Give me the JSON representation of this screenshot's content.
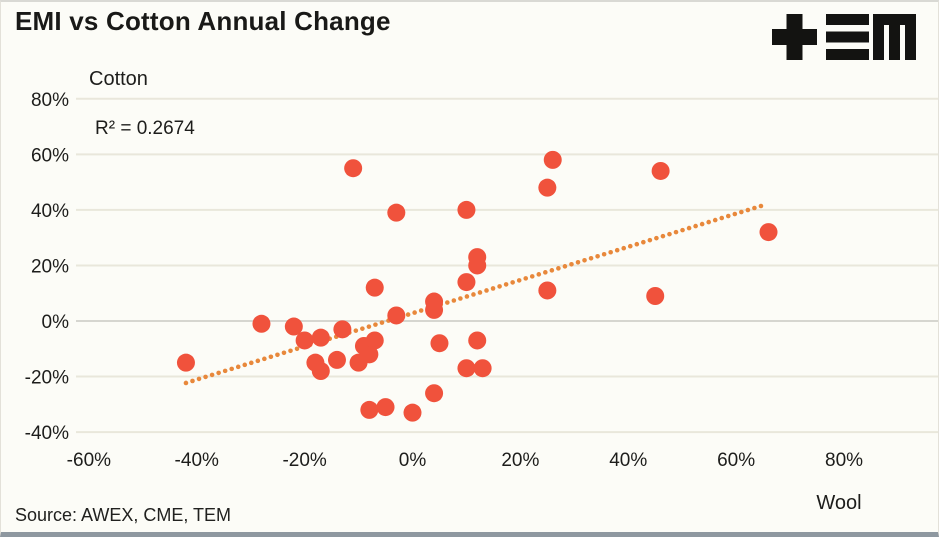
{
  "header": {
    "title": "EMI vs Cotton Annual Change",
    "logo": "tem-logo"
  },
  "footer": {
    "source": "Source: AWEX, CME, TEM"
  },
  "chart_data": {
    "type": "scatter",
    "title": "EMI vs Cotton Annual Change",
    "xlabel": "Wool",
    "ylabel": "Cotton",
    "annotation_r2": "R² = 0.2674",
    "r_squared": 0.2674,
    "xlim": [
      -60,
      80
    ],
    "ylim": [
      -40,
      80
    ],
    "grid": true,
    "x_ticks": [
      "-60%",
      "-40%",
      "-20%",
      "0%",
      "20%",
      "40%",
      "60%",
      "80%"
    ],
    "x_tick_values": [
      -60,
      -40,
      -20,
      0,
      20,
      40,
      60,
      80
    ],
    "y_ticks": [
      "80%",
      "60%",
      "40%",
      "20%",
      "0%",
      "-20%",
      "-40%"
    ],
    "y_tick_values": [
      80,
      60,
      40,
      20,
      0,
      -20,
      -40
    ],
    "points_wool_cotton_pct": [
      [
        -42,
        -15
      ],
      [
        -28,
        -1
      ],
      [
        -22,
        -2
      ],
      [
        -20,
        -7
      ],
      [
        -18,
        -15
      ],
      [
        -17,
        -6
      ],
      [
        -17,
        -18
      ],
      [
        -14,
        -14
      ],
      [
        -13,
        -3
      ],
      [
        -11,
        55
      ],
      [
        -10,
        -15
      ],
      [
        -9,
        -9
      ],
      [
        -8,
        -12
      ],
      [
        -8,
        -32
      ],
      [
        -7,
        -7
      ],
      [
        -7,
        12
      ],
      [
        -5,
        -31
      ],
      [
        -3,
        39
      ],
      [
        -3,
        2
      ],
      [
        0,
        -33
      ],
      [
        4,
        7
      ],
      [
        4,
        4
      ],
      [
        4,
        -26
      ],
      [
        5,
        -8
      ],
      [
        10,
        40
      ],
      [
        10,
        14
      ],
      [
        10,
        -17
      ],
      [
        12,
        23
      ],
      [
        12,
        20
      ],
      [
        12,
        -7
      ],
      [
        13,
        -17
      ],
      [
        25,
        48
      ],
      [
        25,
        11
      ],
      [
        26,
        58
      ],
      [
        45,
        9
      ],
      [
        46,
        54
      ],
      [
        66,
        32
      ]
    ],
    "trendline": {
      "style": "dotted",
      "start": {
        "wool": -42,
        "cotton": -22.3
      },
      "end": {
        "wool": 64.6,
        "cotton": 41.4
      }
    },
    "colors": {
      "point": "#F0523C",
      "trend": "#E8883B",
      "grid": "#E9E7DB",
      "zero_grid": "#D6D6D0",
      "background": "#FCFCF7",
      "text": "#1D1D1B"
    }
  }
}
